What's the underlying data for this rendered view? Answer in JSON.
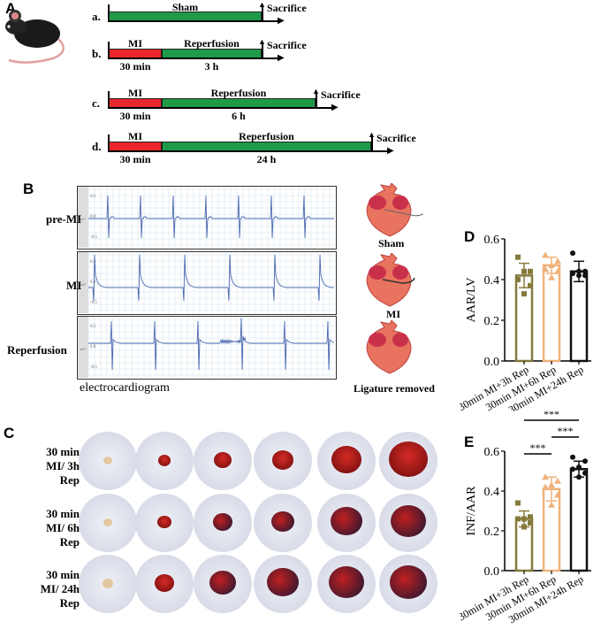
{
  "panels": {
    "a": "A",
    "b": "B",
    "c": "C",
    "d": "D",
    "e": "E"
  },
  "protocol": {
    "rows": [
      {
        "letter": "a.",
        "segments": [
          {
            "label": "Sham",
            "color": "green"
          }
        ],
        "below": [],
        "end": "Sacrifice"
      },
      {
        "letter": "b.",
        "segments": [
          {
            "label": "MI",
            "color": "red"
          },
          {
            "label": "Reperfusion",
            "color": "green"
          }
        ],
        "below": [
          "30 min",
          "3 h"
        ],
        "end": "Sacrifice"
      },
      {
        "letter": "c.",
        "segments": [
          {
            "label": "MI",
            "color": "red"
          },
          {
            "label": "Reperfusion",
            "color": "green"
          }
        ],
        "below": [
          "30 min",
          "6 h"
        ],
        "end": "Sacrifice"
      },
      {
        "letter": "d.",
        "segments": [
          {
            "label": "MI",
            "color": "red"
          },
          {
            "label": "Reperfusion",
            "color": "green"
          }
        ],
        "below": [
          "30 min",
          "24 h"
        ],
        "end": "Sacrifice"
      }
    ],
    "colors": {
      "red": "#e8262c",
      "green": "#1f9a48"
    }
  },
  "ecg": {
    "rows": [
      "pre-MI",
      "MI",
      "Reperfusion"
    ],
    "ticks": [
      "0.5",
      "0.0",
      "-0.5"
    ],
    "unit": "mV",
    "caption": "electrocardiogram",
    "heart_labels": [
      "Sham",
      "MI",
      "Ligature removed"
    ]
  },
  "staining": {
    "rows": [
      "30 min MI/ 3h Rep",
      "30 min MI/ 6h Rep",
      "30 min MI/ 24h Rep"
    ]
  },
  "chart_data": [
    {
      "panel": "D",
      "type": "bar",
      "ylabel": "AAR/LV",
      "ylim": [
        0,
        0.6
      ],
      "yticks": [
        "0.0",
        "0.2",
        "0.4",
        "0.6"
      ],
      "categories": [
        "30min MI+3h Rep",
        "30min MI+6h Rep",
        "30min MI+24h Rep"
      ],
      "values": [
        0.42,
        0.47,
        0.44
      ],
      "sd": [
        0.06,
        0.04,
        0.05
      ],
      "points": [
        [
          0.51,
          0.44,
          0.44,
          0.4,
          0.37,
          0.33
        ],
        [
          0.52,
          0.49,
          0.47,
          0.45,
          0.44,
          0.41
        ],
        [
          0.53,
          0.44,
          0.44,
          0.43,
          0.42,
          0.42
        ]
      ],
      "colors": [
        "#857a3c",
        "#f0b27a",
        "#111111"
      ],
      "markers": [
        "square",
        "triangle",
        "circle"
      ],
      "significance": []
    },
    {
      "panel": "E",
      "type": "bar",
      "ylabel": "INF/AAR",
      "ylim": [
        0,
        0.6
      ],
      "yticks": [
        "0.0",
        "0.2",
        "0.4",
        "0.6"
      ],
      "categories": [
        "30min MI+3h Rep",
        "30min MI+6h Rep",
        "30min MI+24h Rep"
      ],
      "values": [
        0.26,
        0.41,
        0.51
      ],
      "sd": [
        0.04,
        0.06,
        0.04
      ],
      "points": [
        [
          0.34,
          0.27,
          0.26,
          0.26,
          0.24,
          0.22
        ],
        [
          0.47,
          0.45,
          0.43,
          0.42,
          0.38,
          0.33
        ],
        [
          0.57,
          0.55,
          0.52,
          0.51,
          0.49,
          0.47
        ]
      ],
      "colors": [
        "#857a3c",
        "#f0b27a",
        "#111111"
      ],
      "markers": [
        "square",
        "triangle",
        "circle"
      ],
      "significance": [
        {
          "from": 0,
          "to": 1,
          "label": "***"
        },
        {
          "from": 1,
          "to": 2,
          "label": "***"
        },
        {
          "from": 0,
          "to": 2,
          "label": "***"
        }
      ]
    }
  ]
}
